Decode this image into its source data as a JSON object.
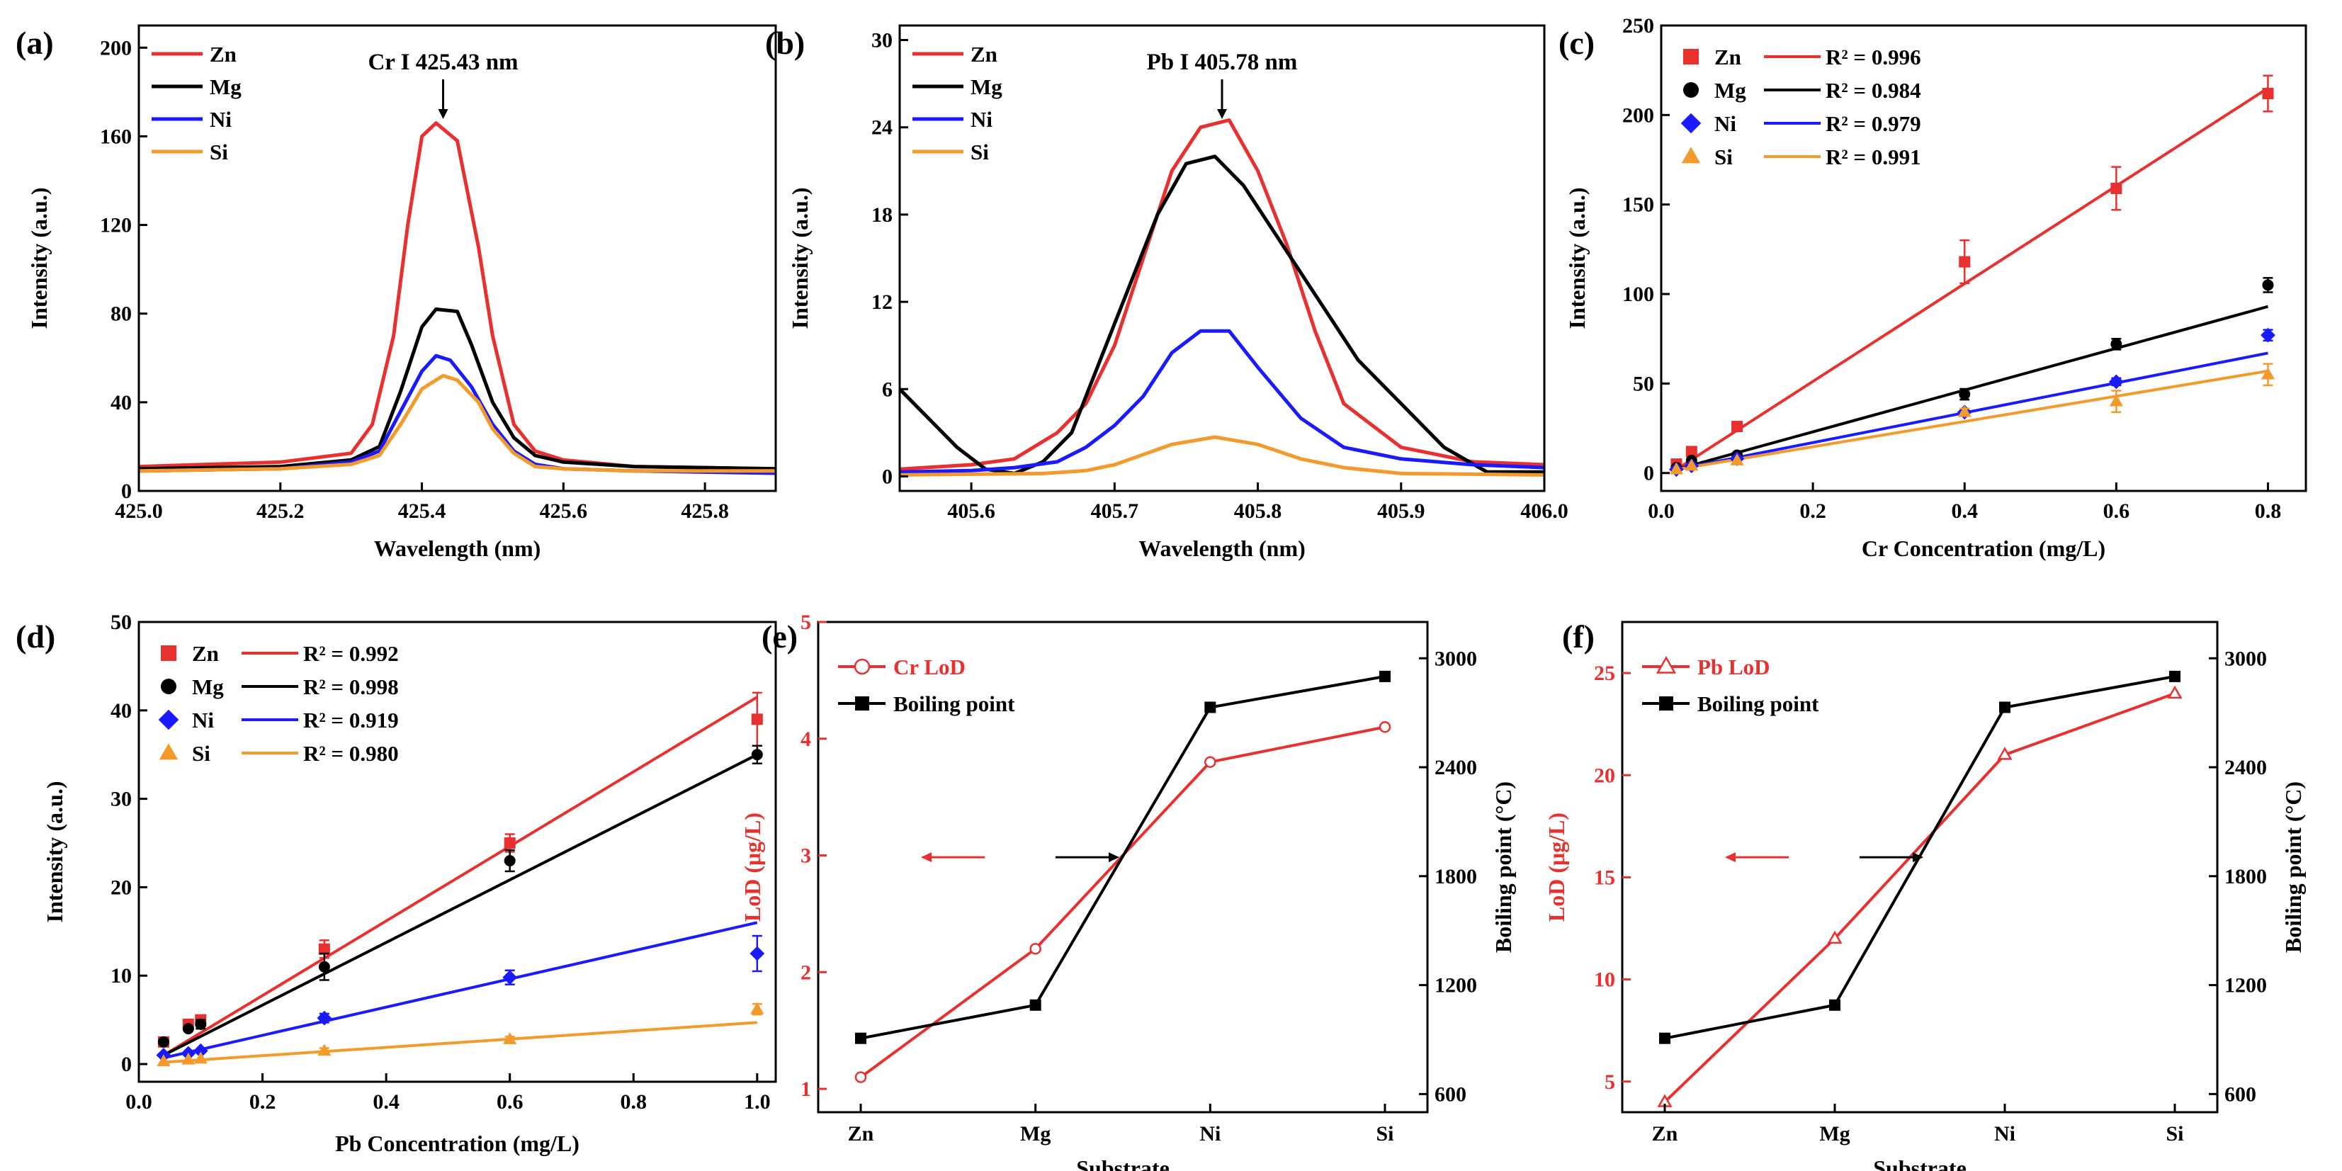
{
  "colors": {
    "Zn": "#e8312f",
    "Mg": "#000000",
    "Ni": "#1a1aff",
    "Si": "#f39a2b"
  },
  "chart_data": [
    {
      "panel": "(a)",
      "type": "line",
      "title": "",
      "annotation": "Cr I 425.43 nm",
      "xlabel": "Wavelength (nm)",
      "ylabel": "Intensity (a.u.)",
      "xlim": [
        425.0,
        425.9
      ],
      "ylim": [
        0,
        210
      ],
      "xticks": [
        "425.0",
        "425.2",
        "425.4",
        "425.6",
        "425.8"
      ],
      "yticks": [
        "0",
        "40",
        "80",
        "120",
        "160",
        "200"
      ],
      "legend": [
        "Zn",
        "Mg",
        "Ni",
        "Si"
      ],
      "series": [
        {
          "name": "Zn",
          "x": [
            425.0,
            425.2,
            425.3,
            425.33,
            425.36,
            425.38,
            425.4,
            425.42,
            425.45,
            425.48,
            425.5,
            425.53,
            425.56,
            425.6,
            425.7,
            425.9
          ],
          "values": [
            11,
            13,
            17,
            30,
            70,
            120,
            160,
            166,
            158,
            110,
            70,
            30,
            18,
            14,
            11,
            10
          ]
        },
        {
          "name": "Mg",
          "x": [
            425.0,
            425.2,
            425.3,
            425.34,
            425.37,
            425.4,
            425.42,
            425.45,
            425.47,
            425.5,
            425.53,
            425.56,
            425.6,
            425.7,
            425.9
          ],
          "values": [
            10,
            11,
            14,
            20,
            45,
            74,
            82,
            81,
            66,
            40,
            24,
            16,
            13,
            11,
            10
          ]
        },
        {
          "name": "Ni",
          "x": [
            425.0,
            425.2,
            425.3,
            425.34,
            425.37,
            425.4,
            425.42,
            425.44,
            425.47,
            425.5,
            425.53,
            425.56,
            425.6,
            425.7,
            425.9
          ],
          "values": [
            9,
            10,
            13,
            18,
            36,
            54,
            61,
            59,
            47,
            30,
            18,
            12,
            10,
            9,
            8
          ]
        },
        {
          "name": "Si",
          "x": [
            425.0,
            425.2,
            425.3,
            425.34,
            425.37,
            425.4,
            425.43,
            425.45,
            425.48,
            425.5,
            425.53,
            425.56,
            425.6,
            425.7,
            425.9
          ],
          "values": [
            9,
            10,
            12,
            16,
            30,
            46,
            52,
            50,
            40,
            28,
            17,
            11,
            10,
            9,
            9
          ]
        }
      ]
    },
    {
      "panel": "(b)",
      "type": "line",
      "title": "",
      "annotation": "Pb I 405.78 nm",
      "xlabel": "Wavelength (nm)",
      "ylabel": "Intensity (a.u.)",
      "xlim": [
        405.55,
        406.0
      ],
      "ylim": [
        -1,
        31
      ],
      "xticks": [
        "405.6",
        "405.7",
        "405.8",
        "405.9",
        "406.0"
      ],
      "yticks": [
        "0",
        "6",
        "12",
        "18",
        "24",
        "30"
      ],
      "legend": [
        "Zn",
        "Mg",
        "Ni",
        "Si"
      ],
      "series": [
        {
          "name": "Zn",
          "x": [
            405.55,
            405.6,
            405.63,
            405.66,
            405.68,
            405.7,
            405.72,
            405.74,
            405.76,
            405.78,
            405.8,
            405.82,
            405.84,
            405.86,
            405.9,
            405.95,
            406.0
          ],
          "values": [
            0.5,
            0.8,
            1.2,
            3,
            5,
            9,
            15,
            21,
            24,
            24.5,
            21,
            16,
            10,
            5,
            2,
            1,
            0.8
          ]
        },
        {
          "name": "Mg",
          "x": [
            405.55,
            405.57,
            405.59,
            405.61,
            405.63,
            405.65,
            405.67,
            405.69,
            405.71,
            405.73,
            405.75,
            405.77,
            405.79,
            405.81,
            405.83,
            405.85,
            405.87,
            405.9,
            405.93,
            405.96,
            406.0
          ],
          "values": [
            6,
            4,
            2,
            0.5,
            0.2,
            1,
            3,
            8,
            13,
            18,
            21.5,
            22,
            20,
            17,
            14,
            11,
            8,
            5,
            2,
            0.3,
            0.3
          ]
        },
        {
          "name": "Ni",
          "x": [
            405.55,
            405.6,
            405.63,
            405.66,
            405.68,
            405.7,
            405.72,
            405.74,
            405.76,
            405.78,
            405.8,
            405.83,
            405.86,
            405.9,
            405.95,
            406.0
          ],
          "values": [
            0.3,
            0.4,
            0.6,
            1,
            2,
            3.5,
            5.5,
            8.5,
            10,
            10,
            7.5,
            4,
            2,
            1.2,
            0.8,
            0.6
          ]
        },
        {
          "name": "Si",
          "x": [
            405.55,
            405.65,
            405.68,
            405.7,
            405.72,
            405.74,
            405.77,
            405.8,
            405.83,
            405.86,
            405.9,
            406.0
          ],
          "values": [
            0.1,
            0.2,
            0.4,
            0.8,
            1.5,
            2.2,
            2.7,
            2.2,
            1.2,
            0.6,
            0.2,
            0.1
          ]
        }
      ]
    },
    {
      "panel": "(c)",
      "type": "scatter",
      "title": "",
      "xlabel": "Cr Concentration (mg/L)",
      "ylabel": "Intensity (a.u.)",
      "xlim": [
        0,
        0.85
      ],
      "ylim": [
        -10,
        250
      ],
      "xticks": [
        "0.0",
        "0.2",
        "0.4",
        "0.6",
        "0.8"
      ],
      "yticks": [
        "0",
        "50",
        "100",
        "150",
        "200",
        "250"
      ],
      "x": [
        0.02,
        0.04,
        0.1,
        0.4,
        0.6,
        0.8
      ],
      "series": [
        {
          "name": "Zn",
          "marker": "square",
          "r2": "R² = 0.996",
          "values": [
            5,
            12,
            26,
            118,
            159,
            212
          ],
          "errors": [
            0,
            0,
            0,
            12,
            12,
            10
          ],
          "fit": [
            2,
            215
          ]
        },
        {
          "name": "Mg",
          "marker": "circle",
          "r2": "R² = 0.984",
          "values": [
            3,
            7,
            10,
            44,
            72,
            105
          ],
          "errors": [
            0,
            0,
            0,
            3,
            3,
            4
          ],
          "fit": [
            2,
            93
          ]
        },
        {
          "name": "Ni",
          "marker": "diamond",
          "r2": "R² = 0.979",
          "values": [
            2,
            4,
            8,
            34,
            51,
            77
          ],
          "errors": [
            0,
            0,
            0,
            2,
            2,
            3
          ],
          "fit": [
            2,
            67
          ]
        },
        {
          "name": "Si",
          "marker": "triangle",
          "r2": "R² = 0.991",
          "values": [
            2,
            4,
            7,
            34,
            40,
            55
          ],
          "errors": [
            0,
            0,
            0,
            2,
            6,
            6
          ],
          "fit": [
            2,
            57
          ]
        }
      ]
    },
    {
      "panel": "(d)",
      "type": "scatter",
      "title": "",
      "xlabel": "Pb Concentration (mg/L)",
      "ylabel": "Intensity (a.u.)",
      "xlim": [
        0,
        1.03
      ],
      "ylim": [
        -2,
        50
      ],
      "xticks": [
        "0.0",
        "0.2",
        "0.4",
        "0.6",
        "0.8",
        "1.0"
      ],
      "yticks": [
        "0",
        "10",
        "20",
        "30",
        "40",
        "50"
      ],
      "x": [
        0.04,
        0.08,
        0.1,
        0.3,
        0.6,
        1.0
      ],
      "series": [
        {
          "name": "Zn",
          "marker": "square",
          "r2": "R² = 0.992",
          "values": [
            2.5,
            4.5,
            5,
            13,
            25,
            39
          ],
          "errors": [
            0,
            0,
            0.5,
            1,
            1,
            3
          ],
          "fit": [
            1.0,
            41.5
          ]
        },
        {
          "name": "Mg",
          "marker": "circle",
          "r2": "R² = 0.998",
          "values": [
            2.5,
            4,
            4.5,
            11,
            23,
            35
          ],
          "errors": [
            0,
            0,
            0.5,
            1.5,
            1.2,
            1
          ],
          "fit": [
            1.0,
            35
          ]
        },
        {
          "name": "Ni",
          "marker": "diamond",
          "r2": "R² = 0.919",
          "values": [
            1,
            1.2,
            1.5,
            5.2,
            9.8,
            12.5
          ],
          "errors": [
            0,
            0,
            0,
            0.5,
            0.8,
            2
          ],
          "fit": [
            0.7,
            16
          ]
        },
        {
          "name": "Si",
          "marker": "triangle",
          "r2": "R² = 0.980",
          "values": [
            0.3,
            0.5,
            0.6,
            1.5,
            2.8,
            6.2
          ],
          "errors": [
            0,
            0,
            0,
            0.3,
            0.3,
            0.6
          ],
          "fit": [
            0.2,
            4.7
          ]
        }
      ]
    },
    {
      "panel": "(e)",
      "type": "line",
      "title": "",
      "xlabel": "Substrate",
      "ylabel": "LoD (μg/L)",
      "ylabel_right": "Boiling point (°C)",
      "categories": [
        "Zn",
        "Mg",
        "Ni",
        "Si"
      ],
      "ylim": [
        0.8,
        5
      ],
      "ylim_right": [
        500,
        3200
      ],
      "yticks": [
        "1",
        "2",
        "3",
        "4",
        "5"
      ],
      "yticks_right": [
        "600",
        "1200",
        "1800",
        "2400",
        "3000"
      ],
      "series": [
        {
          "name": "Cr LoD",
          "axis": "left",
          "marker": "open-circle",
          "values": [
            1.1,
            2.2,
            3.8,
            4.1
          ]
        },
        {
          "name": "Boiling point",
          "axis": "right",
          "marker": "square",
          "values": [
            907,
            1090,
            2730,
            2900
          ]
        }
      ]
    },
    {
      "panel": "(f)",
      "type": "line",
      "title": "",
      "xlabel": "Substrate",
      "ylabel": "LoD (μg/L)",
      "ylabel_right": "Boiling point (°C)",
      "categories": [
        "Zn",
        "Mg",
        "Ni",
        "Si"
      ],
      "ylim": [
        3.5,
        27.5
      ],
      "ylim_right": [
        500,
        3200
      ],
      "yticks": [
        "5",
        "10",
        "15",
        "20",
        "25"
      ],
      "yticks_right": [
        "600",
        "1200",
        "1800",
        "2400",
        "3000"
      ],
      "series": [
        {
          "name": "Pb LoD",
          "axis": "left",
          "marker": "open-triangle",
          "values": [
            4,
            12,
            21,
            24
          ]
        },
        {
          "name": "Boiling point",
          "axis": "right",
          "marker": "square",
          "values": [
            907,
            1090,
            2730,
            2900
          ]
        }
      ]
    }
  ]
}
